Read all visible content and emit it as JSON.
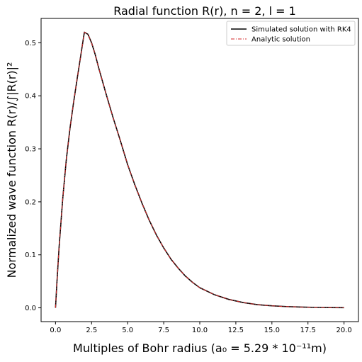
{
  "chart_data": {
    "type": "line",
    "title": "Radial function R(r), n = 2, l = 1",
    "xlabel": "Multiples of Bohr radius (a₀ = 5.29 * 10⁻¹¹m)",
    "ylabel": "Normalized wave function R(r)/∫|R(r)|²",
    "xlim": [
      -1.0,
      21.0
    ],
    "ylim": [
      -0.026,
      0.546
    ],
    "xticks": [
      0.0,
      2.5,
      5.0,
      7.5,
      10.0,
      12.5,
      15.0,
      17.5,
      20.0
    ],
    "xtick_labels": [
      "0.0",
      "2.5",
      "5.0",
      "7.5",
      "10.0",
      "12.5",
      "15.0",
      "17.5",
      "20.0"
    ],
    "yticks": [
      0.0,
      0.1,
      0.2,
      0.3,
      0.4,
      0.5
    ],
    "ytick_labels": [
      "0.0",
      "0.1",
      "0.2",
      "0.3",
      "0.4",
      "0.5"
    ],
    "grid": false,
    "legend_position": "top-right",
    "series": [
      {
        "name": "Simulated solution with RK4",
        "color": "#000000",
        "style": "solid",
        "x": [
          0,
          0.1,
          0.25,
          0.5,
          0.75,
          1.0,
          1.25,
          1.5,
          1.75,
          2.0,
          2.25,
          2.5,
          2.75,
          3.0,
          3.5,
          4.0,
          4.5,
          5.0,
          5.5,
          6.0,
          6.5,
          7.0,
          7.5,
          8.0,
          8.5,
          9.0,
          9.5,
          10.0,
          11.0,
          12.0,
          13.0,
          14.0,
          15.0,
          16.0,
          17.0,
          18.0,
          19.0,
          20.0
        ],
        "y": [
          0.0,
          0.049,
          0.115,
          0.206,
          0.28,
          0.338,
          0.387,
          0.432,
          0.476,
          0.52,
          0.516,
          0.5,
          0.478,
          0.452,
          0.404,
          0.358,
          0.315,
          0.27,
          0.232,
          0.197,
          0.165,
          0.137,
          0.113,
          0.092,
          0.075,
          0.06,
          0.048,
          0.038,
          0.025,
          0.016,
          0.01,
          0.006,
          0.0038,
          0.0024,
          0.0015,
          0.0009,
          0.0005,
          0.0003
        ]
      },
      {
        "name": "Analytic solution",
        "color": "#d62728",
        "style": "dashdot",
        "x": [
          0,
          0.1,
          0.25,
          0.5,
          0.75,
          1.0,
          1.25,
          1.5,
          1.75,
          2.0,
          2.25,
          2.5,
          2.75,
          3.0,
          3.5,
          4.0,
          4.5,
          5.0,
          5.5,
          6.0,
          6.5,
          7.0,
          7.5,
          8.0,
          8.5,
          9.0,
          9.5,
          10.0,
          11.0,
          12.0,
          13.0,
          14.0,
          15.0,
          16.0,
          17.0,
          18.0,
          19.0,
          20.0
        ],
        "y": [
          0.0,
          0.049,
          0.115,
          0.206,
          0.28,
          0.338,
          0.387,
          0.432,
          0.476,
          0.52,
          0.516,
          0.5,
          0.478,
          0.452,
          0.404,
          0.358,
          0.315,
          0.27,
          0.232,
          0.197,
          0.165,
          0.137,
          0.113,
          0.092,
          0.075,
          0.06,
          0.048,
          0.038,
          0.025,
          0.016,
          0.01,
          0.006,
          0.0038,
          0.0024,
          0.0015,
          0.0009,
          0.0005,
          0.0003
        ]
      }
    ]
  }
}
